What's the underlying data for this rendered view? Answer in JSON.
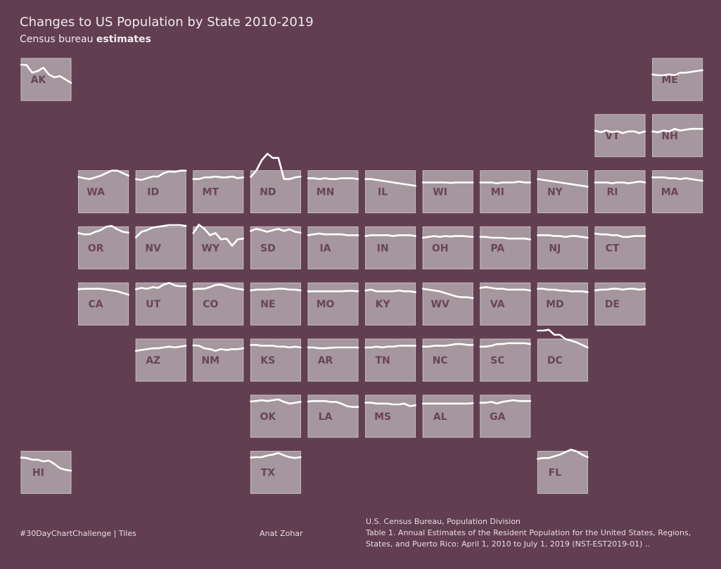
{
  "title": "Changes to US Population by State 2010-2019",
  "subtitle_prefix": "Census bureau ",
  "subtitle_bold": "estimates",
  "footer": {
    "left": "#30DayChartChallenge  |  Tiles",
    "author": "Anat Zohar",
    "source_line1": "U.S. Census Bureau, Population Division",
    "source_line2": "Table 1. Annual Estimates of the Resident Population for the United States, Regions,",
    "source_line3": "States, and Puerto Rico: April 1, 2010 to July 1, 2019 (NST-EST2019-01) .."
  },
  "colors": {
    "background": "#613e50",
    "tile": "#a5979d",
    "label": "#6a4457",
    "line": "#ffffff"
  },
  "chart_data": {
    "type": "line",
    "layout": "tile-map",
    "years": [
      2010,
      2011,
      2012,
      2013,
      2014,
      2015,
      2016,
      2017,
      2018,
      2019
    ],
    "ylim": [
      0,
      1
    ],
    "states": [
      {
        "state": "AK",
        "row": 0,
        "col": 0,
        "values": [
          0.85,
          0.84,
          0.66,
          0.7,
          0.78,
          0.62,
          0.55,
          0.58,
          0.5,
          0.42
        ]
      },
      {
        "state": "ME",
        "row": 0,
        "col": 11,
        "values": [
          0.62,
          0.6,
          0.6,
          0.62,
          0.6,
          0.66,
          0.66,
          0.68,
          0.7,
          0.72
        ]
      },
      {
        "state": "VT",
        "row": 1,
        "col": 10,
        "values": [
          0.62,
          0.58,
          0.62,
          0.58,
          0.6,
          0.56,
          0.6,
          0.6,
          0.56,
          0.6
        ]
      },
      {
        "state": "NH",
        "row": 1,
        "col": 11,
        "values": [
          0.6,
          0.58,
          0.62,
          0.6,
          0.66,
          0.62,
          0.64,
          0.66,
          0.66,
          0.66
        ]
      },
      {
        "state": "WA",
        "row": 2,
        "col": 1,
        "values": [
          0.85,
          0.82,
          0.8,
          0.84,
          0.88,
          0.94,
          1.0,
          1.0,
          0.94,
          0.88
        ]
      },
      {
        "state": "ID",
        "row": 2,
        "col": 2,
        "values": [
          0.8,
          0.78,
          0.82,
          0.86,
          0.86,
          0.94,
          0.98,
          0.97,
          1.0,
          1.0
        ]
      },
      {
        "state": "MT",
        "row": 2,
        "col": 3,
        "values": [
          0.8,
          0.8,
          0.84,
          0.84,
          0.86,
          0.84,
          0.84,
          0.86,
          0.82,
          0.84
        ]
      },
      {
        "state": "ND",
        "row": 2,
        "col": 4,
        "values": [
          0.85,
          1.0,
          1.25,
          1.4,
          1.3,
          1.3,
          0.8,
          0.8,
          0.84,
          0.86
        ]
      },
      {
        "state": "MN",
        "row": 2,
        "col": 5,
        "values": [
          0.82,
          0.82,
          0.8,
          0.82,
          0.8,
          0.8,
          0.82,
          0.82,
          0.82,
          0.8
        ]
      },
      {
        "state": "IL",
        "row": 2,
        "col": 6,
        "values": [
          0.8,
          0.8,
          0.78,
          0.76,
          0.74,
          0.72,
          0.7,
          0.68,
          0.66,
          0.64
        ]
      },
      {
        "state": "WI",
        "row": 2,
        "col": 7,
        "values": [
          0.72,
          0.72,
          0.72,
          0.72,
          0.72,
          0.71,
          0.72,
          0.72,
          0.72,
          0.72
        ]
      },
      {
        "state": "MI",
        "row": 2,
        "col": 8,
        "values": [
          0.72,
          0.72,
          0.72,
          0.7,
          0.72,
          0.72,
          0.72,
          0.74,
          0.72,
          0.72
        ]
      },
      {
        "state": "NY",
        "row": 2,
        "col": 9,
        "values": [
          0.8,
          0.78,
          0.76,
          0.74,
          0.72,
          0.7,
          0.68,
          0.66,
          0.64,
          0.62
        ]
      },
      {
        "state": "RI",
        "row": 2,
        "col": 10,
        "values": [
          0.72,
          0.72,
          0.72,
          0.7,
          0.72,
          0.72,
          0.7,
          0.72,
          0.74,
          0.72
        ]
      },
      {
        "state": "MA",
        "row": 2,
        "col": 11,
        "values": [
          0.84,
          0.84,
          0.84,
          0.82,
          0.82,
          0.8,
          0.82,
          0.8,
          0.78,
          0.76
        ]
      },
      {
        "state": "OR",
        "row": 3,
        "col": 1,
        "values": [
          0.85,
          0.82,
          0.82,
          0.88,
          0.92,
          1.0,
          1.02,
          0.94,
          0.88,
          0.86
        ]
      },
      {
        "state": "NV",
        "row": 3,
        "col": 2,
        "values": [
          0.75,
          0.88,
          0.92,
          0.98,
          1.0,
          1.02,
          1.04,
          1.04,
          1.04,
          1.02
        ]
      },
      {
        "state": "WY",
        "row": 3,
        "col": 3,
        "values": [
          0.85,
          1.05,
          0.95,
          0.8,
          0.85,
          0.7,
          0.72,
          0.55,
          0.7,
          0.72
        ]
      },
      {
        "state": "SD",
        "row": 3,
        "col": 4,
        "values": [
          0.9,
          0.95,
          0.92,
          0.88,
          0.92,
          0.95,
          0.9,
          0.94,
          0.88,
          0.86
        ]
      },
      {
        "state": "IA",
        "row": 3,
        "col": 5,
        "values": [
          0.8,
          0.82,
          0.84,
          0.82,
          0.82,
          0.82,
          0.82,
          0.8,
          0.8,
          0.8
        ]
      },
      {
        "state": "IN",
        "row": 3,
        "col": 6,
        "values": [
          0.78,
          0.8,
          0.8,
          0.8,
          0.8,
          0.78,
          0.8,
          0.8,
          0.8,
          0.78
        ]
      },
      {
        "state": "OH",
        "row": 3,
        "col": 7,
        "values": [
          0.74,
          0.76,
          0.78,
          0.76,
          0.78,
          0.77,
          0.78,
          0.78,
          0.77,
          0.76
        ]
      },
      {
        "state": "PA",
        "row": 3,
        "col": 8,
        "values": [
          0.76,
          0.76,
          0.74,
          0.74,
          0.74,
          0.72,
          0.72,
          0.72,
          0.72,
          0.7
        ]
      },
      {
        "state": "NJ",
        "row": 3,
        "col": 9,
        "values": [
          0.8,
          0.8,
          0.8,
          0.78,
          0.78,
          0.76,
          0.78,
          0.78,
          0.76,
          0.74
        ]
      },
      {
        "state": "CT",
        "row": 3,
        "col": 10,
        "values": [
          0.84,
          0.82,
          0.82,
          0.8,
          0.8,
          0.76,
          0.76,
          0.78,
          0.78,
          0.78
        ]
      },
      {
        "state": "CA",
        "row": 4,
        "col": 1,
        "values": [
          0.85,
          0.86,
          0.86,
          0.86,
          0.86,
          0.84,
          0.82,
          0.8,
          0.76,
          0.72
        ]
      },
      {
        "state": "UT",
        "row": 4,
        "col": 2,
        "values": [
          0.85,
          0.88,
          0.86,
          0.9,
          0.88,
          0.96,
          1.0,
          0.94,
          0.92,
          0.92
        ]
      },
      {
        "state": "CO",
        "row": 4,
        "col": 3,
        "values": [
          0.85,
          0.86,
          0.86,
          0.9,
          0.95,
          0.96,
          0.92,
          0.88,
          0.86,
          0.84
        ]
      },
      {
        "state": "NE",
        "row": 4,
        "col": 4,
        "values": [
          0.82,
          0.84,
          0.84,
          0.84,
          0.85,
          0.86,
          0.86,
          0.84,
          0.84,
          0.82
        ]
      },
      {
        "state": "MO",
        "row": 4,
        "col": 5,
        "values": [
          0.8,
          0.8,
          0.8,
          0.8,
          0.8,
          0.8,
          0.8,
          0.81,
          0.81,
          0.8
        ]
      },
      {
        "state": "KY",
        "row": 4,
        "col": 6,
        "values": [
          0.82,
          0.84,
          0.8,
          0.8,
          0.8,
          0.8,
          0.82,
          0.8,
          0.8,
          0.78
        ]
      },
      {
        "state": "WV",
        "row": 4,
        "col": 7,
        "values": [
          0.86,
          0.84,
          0.82,
          0.8,
          0.76,
          0.72,
          0.68,
          0.66,
          0.66,
          0.64
        ]
      },
      {
        "state": "VA",
        "row": 4,
        "col": 8,
        "values": [
          0.88,
          0.9,
          0.88,
          0.86,
          0.86,
          0.84,
          0.84,
          0.84,
          0.84,
          0.82
        ]
      },
      {
        "state": "MD",
        "row": 4,
        "col": 9,
        "values": [
          0.86,
          0.86,
          0.84,
          0.84,
          0.82,
          0.82,
          0.8,
          0.8,
          0.8,
          0.78
        ]
      },
      {
        "state": "DE",
        "row": 4,
        "col": 10,
        "values": [
          0.82,
          0.84,
          0.84,
          0.86,
          0.86,
          0.84,
          0.86,
          0.86,
          0.84,
          0.86
        ]
      },
      {
        "state": "AZ",
        "row": 5,
        "col": 2,
        "values": [
          0.72,
          0.74,
          0.76,
          0.78,
          0.78,
          0.8,
          0.82,
          0.8,
          0.82,
          0.84
        ]
      },
      {
        "state": "NM",
        "row": 5,
        "col": 3,
        "values": [
          0.85,
          0.84,
          0.78,
          0.76,
          0.72,
          0.76,
          0.74,
          0.76,
          0.76,
          0.78
        ]
      },
      {
        "state": "KS",
        "row": 5,
        "col": 4,
        "values": [
          0.86,
          0.86,
          0.84,
          0.84,
          0.84,
          0.82,
          0.82,
          0.8,
          0.82,
          0.8
        ]
      },
      {
        "state": "AR",
        "row": 5,
        "col": 5,
        "values": [
          0.8,
          0.8,
          0.78,
          0.78,
          0.79,
          0.8,
          0.8,
          0.8,
          0.8,
          0.8
        ]
      },
      {
        "state": "TN",
        "row": 5,
        "col": 6,
        "values": [
          0.8,
          0.8,
          0.82,
          0.8,
          0.82,
          0.82,
          0.84,
          0.84,
          0.84,
          0.84
        ]
      },
      {
        "state": "NC",
        "row": 5,
        "col": 7,
        "values": [
          0.82,
          0.82,
          0.84,
          0.84,
          0.84,
          0.86,
          0.88,
          0.88,
          0.86,
          0.86
        ]
      },
      {
        "state": "SC",
        "row": 5,
        "col": 8,
        "values": [
          0.82,
          0.82,
          0.84,
          0.88,
          0.88,
          0.9,
          0.9,
          0.9,
          0.9,
          0.88
        ]
      },
      {
        "state": "DC",
        "row": 5,
        "col": 9,
        "values": [
          1.2,
          1.2,
          1.22,
          1.1,
          1.1,
          1.0,
          0.96,
          0.92,
          0.86,
          0.8
        ]
      },
      {
        "state": "OK",
        "row": 6,
        "col": 4,
        "values": [
          0.85,
          0.86,
          0.88,
          0.86,
          0.88,
          0.9,
          0.84,
          0.8,
          0.82,
          0.84
        ]
      },
      {
        "state": "LA",
        "row": 6,
        "col": 5,
        "values": [
          0.85,
          0.86,
          0.86,
          0.86,
          0.84,
          0.84,
          0.8,
          0.74,
          0.72,
          0.72
        ]
      },
      {
        "state": "MS",
        "row": 6,
        "col": 6,
        "values": [
          0.82,
          0.82,
          0.8,
          0.8,
          0.8,
          0.78,
          0.78,
          0.8,
          0.74,
          0.76
        ]
      },
      {
        "state": "AL",
        "row": 6,
        "col": 7,
        "values": [
          0.8,
          0.8,
          0.8,
          0.8,
          0.8,
          0.8,
          0.8,
          0.8,
          0.8,
          0.81
        ]
      },
      {
        "state": "GA",
        "row": 6,
        "col": 8,
        "values": [
          0.82,
          0.82,
          0.84,
          0.8,
          0.84,
          0.86,
          0.88,
          0.86,
          0.86,
          0.86
        ]
      },
      {
        "state": "HI",
        "row": 7,
        "col": 0,
        "values": [
          0.85,
          0.84,
          0.8,
          0.8,
          0.76,
          0.78,
          0.7,
          0.6,
          0.56,
          0.54
        ]
      },
      {
        "state": "TX",
        "row": 7,
        "col": 4,
        "values": [
          0.85,
          0.86,
          0.86,
          0.9,
          0.92,
          0.96,
          0.9,
          0.86,
          0.84,
          0.86
        ]
      },
      {
        "state": "FL",
        "row": 7,
        "col": 9,
        "values": [
          0.82,
          0.84,
          0.84,
          0.88,
          0.92,
          0.98,
          1.04,
          1.0,
          0.92,
          0.86
        ]
      }
    ]
  }
}
